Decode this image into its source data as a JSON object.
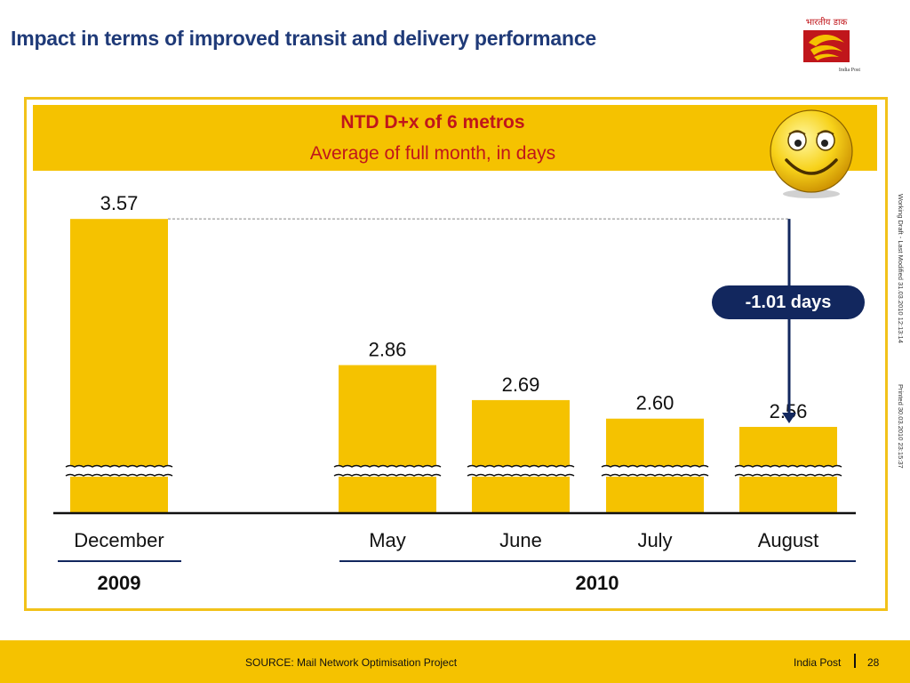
{
  "slide": {
    "title": "Impact in terms of improved transit and delivery performance",
    "logo_text": "India Post",
    "logo_hindi": "भारतीय डाक"
  },
  "chart_data": {
    "type": "bar",
    "title": "NTD D+x of 6 metros",
    "subtitle": "Average of full month, in days",
    "categories": [
      "December",
      "May",
      "June",
      "July",
      "August"
    ],
    "values": [
      3.57,
      2.86,
      2.69,
      2.6,
      2.56
    ],
    "value_labels": [
      "3.57",
      "2.86",
      "2.69",
      "2.60",
      "2.56"
    ],
    "year_groups": [
      {
        "label": "2009",
        "categories": [
          "December"
        ]
      },
      {
        "label": "2010",
        "categories": [
          "May",
          "June",
          "July",
          "August"
        ]
      }
    ],
    "axis_break": true,
    "annotation": "-1.01 days",
    "bar_color": "#f5c200",
    "accent_color": "#12275e",
    "title_color": "#c0161b"
  },
  "side_notes": {
    "draft": "Working Draft - Last Modified 31.03.2010 12:13:14",
    "printed": "Printed 30.03.2010 23:15:37"
  },
  "footer": {
    "source": "SOURCE: Mail Network Optimisation Project",
    "org": "India Post",
    "page": "28"
  }
}
